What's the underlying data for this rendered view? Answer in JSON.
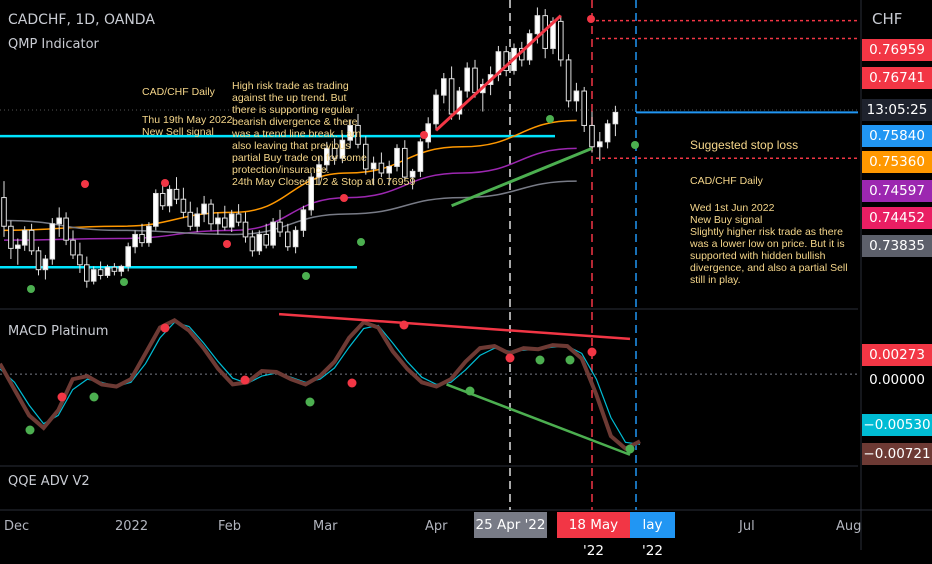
{
  "header": {
    "symbol": "CADCHF, 1D, OANDA",
    "indicator1": "QMP Indicator",
    "indicator2": "MACD Platinum",
    "indicator3": "QQE ADV V2",
    "currency": "CHF"
  },
  "notes": {
    "left_title": "CAD/CHF Daily",
    "left_date": "Thu 19th May 2022\nNew Sell signal",
    "left_body": "High risk trade as trading\nagainst the up trend. But\nthere is supporting regular\nbearish divergence & there\nwas a trend line break. I am\nalso leaving that previous\npartial Buy trade on for some\nprotection/insurance.\n24th May Closed 1/2 & Stop at 0.76959",
    "stop_loss": "Suggested stop loss",
    "right_title": "CAD/CHF Daily",
    "right_body": "Wed 1st Jun 2022\nNew Buy signal\nSlightly higher risk trade as there\nwas a lower low on price. But it is\nsupported with hidden bullish\ndivergence, and also a partial Sell\nstill in play."
  },
  "price_axis": {
    "tags": [
      {
        "label": "0.76959",
        "color": "#f23645"
      },
      {
        "label": "0.76741",
        "color": "#f23645"
      },
      {
        "label": "13:05:25",
        "color": "#1e222d"
      },
      {
        "label": "0.75840",
        "color": "#2196f3"
      },
      {
        "label": "0.75360",
        "color": "#ff9800"
      },
      {
        "label": "0.74597",
        "color": "#9c27b0"
      },
      {
        "label": "0.74452",
        "color": "#e91e63"
      },
      {
        "label": "0.73835",
        "color": "#5d606b"
      }
    ],
    "macd_tags": [
      {
        "label": "0.00273",
        "color": "#f23645"
      },
      {
        "label": "0.00000",
        "color": "#000000"
      },
      {
        "label": "−0.00530",
        "color": "#00bcd4"
      },
      {
        "label": "−0.00721",
        "color": "#6d3a34"
      }
    ]
  },
  "time_axis": {
    "months": [
      "Dec",
      "2022",
      "Feb",
      "Mar",
      "Apr",
      "Jul",
      "Aug"
    ],
    "date_tags": [
      {
        "label": "25 Apr '22",
        "color": "#787b86"
      },
      {
        "label": "18 May '22",
        "color": "#f23645"
      },
      {
        "label": "lay '22",
        "color": "#2196f3"
      }
    ]
  },
  "chart_data": {
    "type": "candlestick",
    "title": "CADCHF, 1D, OANDA",
    "price_ylim": [
      0.7355,
      0.7715
    ],
    "macd_ylim": [
      -0.0085,
      0.006
    ],
    "price_levels": [
      {
        "name": "resistance/support line",
        "value": 0.7555,
        "color": "#00e5ff"
      },
      {
        "name": "support line",
        "value": 0.7395,
        "color": "#00e5ff"
      },
      {
        "name": "stop",
        "value": 0.76959,
        "color": "#f23645"
      },
      {
        "name": "stop",
        "value": 0.76741,
        "color": "#f23645"
      },
      {
        "name": "last",
        "value": 0.7584,
        "color": "#2196f3"
      },
      {
        "name": "stop loss",
        "value": 0.7528,
        "color": "#f23645"
      }
    ],
    "candles": [
      [
        0.748,
        0.75,
        0.7432,
        0.7445
      ],
      [
        0.7445,
        0.7452,
        0.7405,
        0.7418
      ],
      [
        0.7418,
        0.743,
        0.7398,
        0.7422
      ],
      [
        0.7422,
        0.7445,
        0.7415,
        0.744
      ],
      [
        0.744,
        0.7448,
        0.741,
        0.7415
      ],
      [
        0.7415,
        0.742,
        0.7385,
        0.7392
      ],
      [
        0.7392,
        0.741,
        0.738,
        0.7405
      ],
      [
        0.7405,
        0.7455,
        0.7398,
        0.7448
      ],
      [
        0.7448,
        0.7468,
        0.7432,
        0.7455
      ],
      [
        0.7455,
        0.7462,
        0.7422,
        0.7428
      ],
      [
        0.7428,
        0.744,
        0.7405,
        0.741
      ],
      [
        0.741,
        0.7425,
        0.7388,
        0.7398
      ],
      [
        0.7398,
        0.7408,
        0.737,
        0.7378
      ],
      [
        0.7378,
        0.7396,
        0.7374,
        0.7392
      ],
      [
        0.7392,
        0.7402,
        0.738,
        0.7385
      ],
      [
        0.7385,
        0.7398,
        0.7382,
        0.7395
      ],
      [
        0.7395,
        0.74,
        0.7385,
        0.739
      ],
      [
        0.739,
        0.7398,
        0.7384,
        0.7396
      ],
      [
        0.7396,
        0.7425,
        0.739,
        0.742
      ],
      [
        0.742,
        0.744,
        0.7412,
        0.7435
      ],
      [
        0.7435,
        0.7448,
        0.742,
        0.7425
      ],
      [
        0.7425,
        0.745,
        0.742,
        0.7445
      ],
      [
        0.7445,
        0.749,
        0.744,
        0.7485
      ],
      [
        0.7485,
        0.75,
        0.7465,
        0.747
      ],
      [
        0.747,
        0.7495,
        0.7462,
        0.749
      ],
      [
        0.749,
        0.7505,
        0.7472,
        0.7478
      ],
      [
        0.7478,
        0.7492,
        0.7455,
        0.7462
      ],
      [
        0.7462,
        0.7475,
        0.744,
        0.7445
      ],
      [
        0.7445,
        0.7468,
        0.7438,
        0.746
      ],
      [
        0.746,
        0.7482,
        0.745,
        0.7472
      ],
      [
        0.7472,
        0.7478,
        0.744,
        0.7448
      ],
      [
        0.7448,
        0.7462,
        0.7435,
        0.7455
      ],
      [
        0.7455,
        0.747,
        0.744,
        0.7444
      ],
      [
        0.7444,
        0.7465,
        0.7438,
        0.746
      ],
      [
        0.746,
        0.7472,
        0.7445,
        0.745
      ],
      [
        0.745,
        0.7462,
        0.7425,
        0.7432
      ],
      [
        0.7432,
        0.744,
        0.7408,
        0.7415
      ],
      [
        0.7415,
        0.744,
        0.741,
        0.7435
      ],
      [
        0.7435,
        0.7448,
        0.7418,
        0.7422
      ],
      [
        0.7422,
        0.7455,
        0.7418,
        0.745
      ],
      [
        0.745,
        0.7465,
        0.7432,
        0.7438
      ],
      [
        0.7438,
        0.7448,
        0.7415,
        0.742
      ],
      [
        0.742,
        0.7445,
        0.7412,
        0.744
      ],
      [
        0.744,
        0.747,
        0.7432,
        0.7465
      ],
      [
        0.7465,
        0.751,
        0.7458,
        0.7505
      ],
      [
        0.7505,
        0.753,
        0.7495,
        0.752
      ],
      [
        0.752,
        0.7548,
        0.7512,
        0.754
      ],
      [
        0.754,
        0.7552,
        0.752,
        0.7528
      ],
      [
        0.7528,
        0.7558,
        0.7522,
        0.755
      ],
      [
        0.755,
        0.7575,
        0.754,
        0.7568
      ],
      [
        0.7568,
        0.7582,
        0.754,
        0.7545
      ],
      [
        0.7545,
        0.7555,
        0.7508,
        0.7515
      ],
      [
        0.7515,
        0.753,
        0.7495,
        0.7522
      ],
      [
        0.7522,
        0.7535,
        0.7505,
        0.751
      ],
      [
        0.751,
        0.7525,
        0.7495,
        0.7518
      ],
      [
        0.7518,
        0.7545,
        0.7512,
        0.754
      ],
      [
        0.754,
        0.755,
        0.75,
        0.7505
      ],
      [
        0.7505,
        0.7515,
        0.749,
        0.7512
      ],
      [
        0.7512,
        0.7552,
        0.7505,
        0.7548
      ],
      [
        0.7548,
        0.7578,
        0.754,
        0.757
      ],
      [
        0.757,
        0.7612,
        0.7562,
        0.7605
      ],
      [
        0.7605,
        0.7632,
        0.7595,
        0.7625
      ],
      [
        0.7625,
        0.764,
        0.7575,
        0.7582
      ],
      [
        0.7582,
        0.7615,
        0.7575,
        0.761
      ],
      [
        0.761,
        0.7645,
        0.7602,
        0.7638
      ],
      [
        0.7638,
        0.7648,
        0.7602,
        0.7608
      ],
      [
        0.7608,
        0.7625,
        0.7585,
        0.7618
      ],
      [
        0.7618,
        0.764,
        0.7605,
        0.763
      ],
      [
        0.763,
        0.7665,
        0.7622,
        0.7658
      ],
      [
        0.7658,
        0.7665,
        0.7628,
        0.7635
      ],
      [
        0.7635,
        0.7668,
        0.763,
        0.7662
      ],
      [
        0.7662,
        0.767,
        0.764,
        0.7648
      ],
      [
        0.7648,
        0.7685,
        0.7642,
        0.768
      ],
      [
        0.768,
        0.7712,
        0.7668,
        0.7702
      ],
      [
        0.7702,
        0.771,
        0.765,
        0.7662
      ],
      [
        0.7662,
        0.77,
        0.7655,
        0.7695
      ],
      [
        0.7695,
        0.7702,
        0.764,
        0.7648
      ],
      [
        0.7648,
        0.7655,
        0.759,
        0.7598
      ],
      [
        0.7598,
        0.762,
        0.7585,
        0.761
      ],
      [
        0.761,
        0.7615,
        0.756,
        0.7568
      ],
      [
        0.7568,
        0.7585,
        0.7535,
        0.7542
      ],
      [
        0.7542,
        0.756,
        0.7525,
        0.7548
      ],
      [
        0.7548,
        0.7575,
        0.754,
        0.757
      ],
      [
        0.757,
        0.7592,
        0.7555,
        0.7584
      ]
    ],
    "moving_averages": [
      {
        "name": "MA orange",
        "color": "#ff9800",
        "values": [
          0.744,
          0.7445,
          0.7462,
          0.751,
          0.7542,
          0.7574
        ]
      },
      {
        "name": "MA purple",
        "color": "#9c27b0",
        "values": [
          0.7428,
          0.743,
          0.744,
          0.748,
          0.751,
          0.754
        ]
      },
      {
        "name": "MA gray",
        "color": "#787b86",
        "values": [
          0.7452,
          0.744,
          0.7435,
          0.746,
          0.748,
          0.75
        ]
      }
    ],
    "macd": {
      "macd_line": [
        0.001,
        -0.0015,
        -0.004,
        -0.0052,
        -0.0035,
        -0.0005,
        -0.0002,
        -0.001,
        -0.0012,
        -0.0005,
        0.002,
        0.0045,
        0.0052,
        0.0042,
        0.0025,
        0.0005,
        -0.001,
        -0.0008,
        0.0003,
        0.0002,
        -0.0005,
        -0.001,
        -0.0002,
        0.0012,
        0.0035,
        0.005,
        0.0045,
        0.0022,
        0.0005,
        -0.0008,
        -0.0012,
        -0.0005,
        0.0012,
        0.0025,
        0.0027,
        0.002,
        0.0025,
        0.0024,
        0.0028,
        0.0027,
        0.0015,
        -0.002,
        -0.006,
        -0.0072,
        -0.0065
      ],
      "signal_line": [
        0.0005,
        -0.0008,
        -0.003,
        -0.0048,
        -0.004,
        -0.0015,
        -0.0005,
        -0.0008,
        -0.0012,
        -0.0008,
        0.001,
        0.0035,
        0.005,
        0.0046,
        0.003,
        0.0012,
        -0.0004,
        -0.0009,
        -0.0002,
        0.0001,
        -0.0003,
        -0.0008,
        -0.0005,
        0.0006,
        0.0026,
        0.0044,
        0.0047,
        0.003,
        0.0012,
        -0.0003,
        -0.001,
        -0.0008,
        0.0004,
        0.0018,
        0.0025,
        0.0022,
        0.0023,
        0.0024,
        0.0026,
        0.0027,
        0.002,
        -0.0005,
        -0.0042,
        -0.0066,
        -0.0068
      ]
    },
    "trend_lines": [
      {
        "panel": "price",
        "color": "#f23645",
        "from": [
          60,
          0.7562
        ],
        "to": [
          76,
          0.7702
        ]
      },
      {
        "panel": "price",
        "color": "#4caf50",
        "from": [
          62,
          0.747
        ],
        "to": [
          80,
          0.754
        ]
      },
      {
        "panel": "macd",
        "color": "#f23645",
        "from": [
          40,
          0.0058
        ],
        "to": [
          86,
          0.0034
        ]
      },
      {
        "panel": "macd",
        "color": "#4caf50",
        "from": [
          64,
          -0.001
        ],
        "to": [
          86,
          -0.0078
        ]
      }
    ]
  }
}
